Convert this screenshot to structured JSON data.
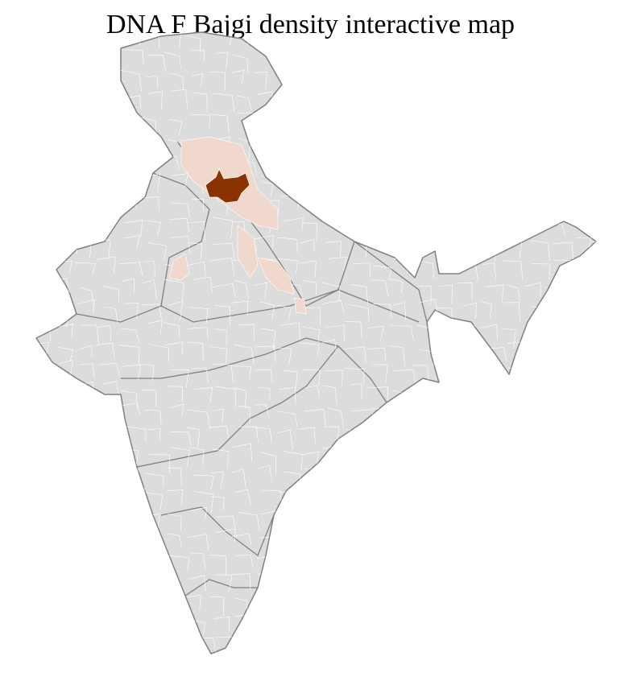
{
  "title": "DNA F Bajgi density interactive map",
  "colors": {
    "no_data": "#dcdcdc",
    "low": "#f0d9cc",
    "high": "#8b3300",
    "district_border": "#ffffff",
    "state_border": "#808080"
  }
}
